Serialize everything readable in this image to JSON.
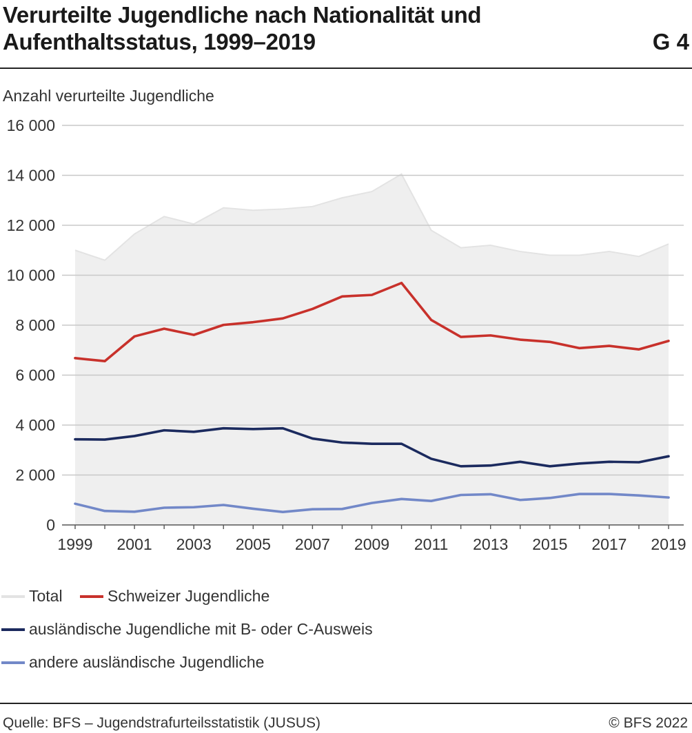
{
  "header": {
    "title": "Verurteilte Jugendliche nach Nationalität und Aufenthaltsstatus, 1999–2019",
    "figure_number": "G 4"
  },
  "footer": {
    "source": "Quelle: BFS – Jugendstrafurteilsstatistik (JUSUS)",
    "copyright": "© BFS 2022"
  },
  "chart_data": {
    "type": "line",
    "ylabel": "Anzahl verurteilte Jugendliche",
    "xlabel": "",
    "ylim": [
      0,
      16000
    ],
    "yticks": [
      0,
      2000,
      4000,
      6000,
      8000,
      10000,
      12000,
      14000,
      16000
    ],
    "ytick_labels": [
      "0",
      "2 000",
      "4 000",
      "6 000",
      "8 000",
      "10 000",
      "12 000",
      "14 000",
      "16 000"
    ],
    "x": [
      1999,
      2000,
      2001,
      2002,
      2003,
      2004,
      2005,
      2006,
      2007,
      2008,
      2009,
      2010,
      2011,
      2012,
      2013,
      2014,
      2015,
      2016,
      2017,
      2018,
      2019
    ],
    "xtick_labels": [
      "1999",
      "2001",
      "2003",
      "2005",
      "2007",
      "2009",
      "2011",
      "2013",
      "2015",
      "2017",
      "2019"
    ],
    "grid": true,
    "legend_position": "bottom",
    "series": [
      {
        "name": "Total",
        "style": "area",
        "color": "#e3e3e3",
        "fill": "#efefef",
        "values": [
          11000,
          10600,
          11650,
          12350,
          12050,
          12700,
          12600,
          12650,
          12750,
          13100,
          13350,
          14050,
          11800,
          11100,
          11200,
          10950,
          10800,
          10800,
          10950,
          10750,
          11250
        ]
      },
      {
        "name": "Schweizer Jugendliche",
        "style": "line",
        "color": "#c8312b",
        "values": [
          6680,
          6560,
          7550,
          7860,
          7610,
          8010,
          8120,
          8270,
          8650,
          9150,
          9210,
          9690,
          8210,
          7530,
          7590,
          7420,
          7330,
          7080,
          7170,
          7030,
          7370
        ]
      },
      {
        "name": "ausländische Jugendliche mit B- oder C-Ausweis",
        "style": "line",
        "color": "#1b2a5e",
        "values": [
          3430,
          3420,
          3560,
          3790,
          3730,
          3870,
          3840,
          3870,
          3460,
          3300,
          3250,
          3250,
          2650,
          2350,
          2380,
          2530,
          2350,
          2460,
          2530,
          2510,
          2750
        ]
      },
      {
        "name": "andere ausländische Jugendliche",
        "style": "line",
        "color": "#7288c8",
        "values": [
          850,
          560,
          530,
          690,
          710,
          800,
          650,
          520,
          630,
          640,
          880,
          1040,
          960,
          1200,
          1230,
          1000,
          1080,
          1240,
          1240,
          1180,
          1100
        ]
      }
    ]
  }
}
